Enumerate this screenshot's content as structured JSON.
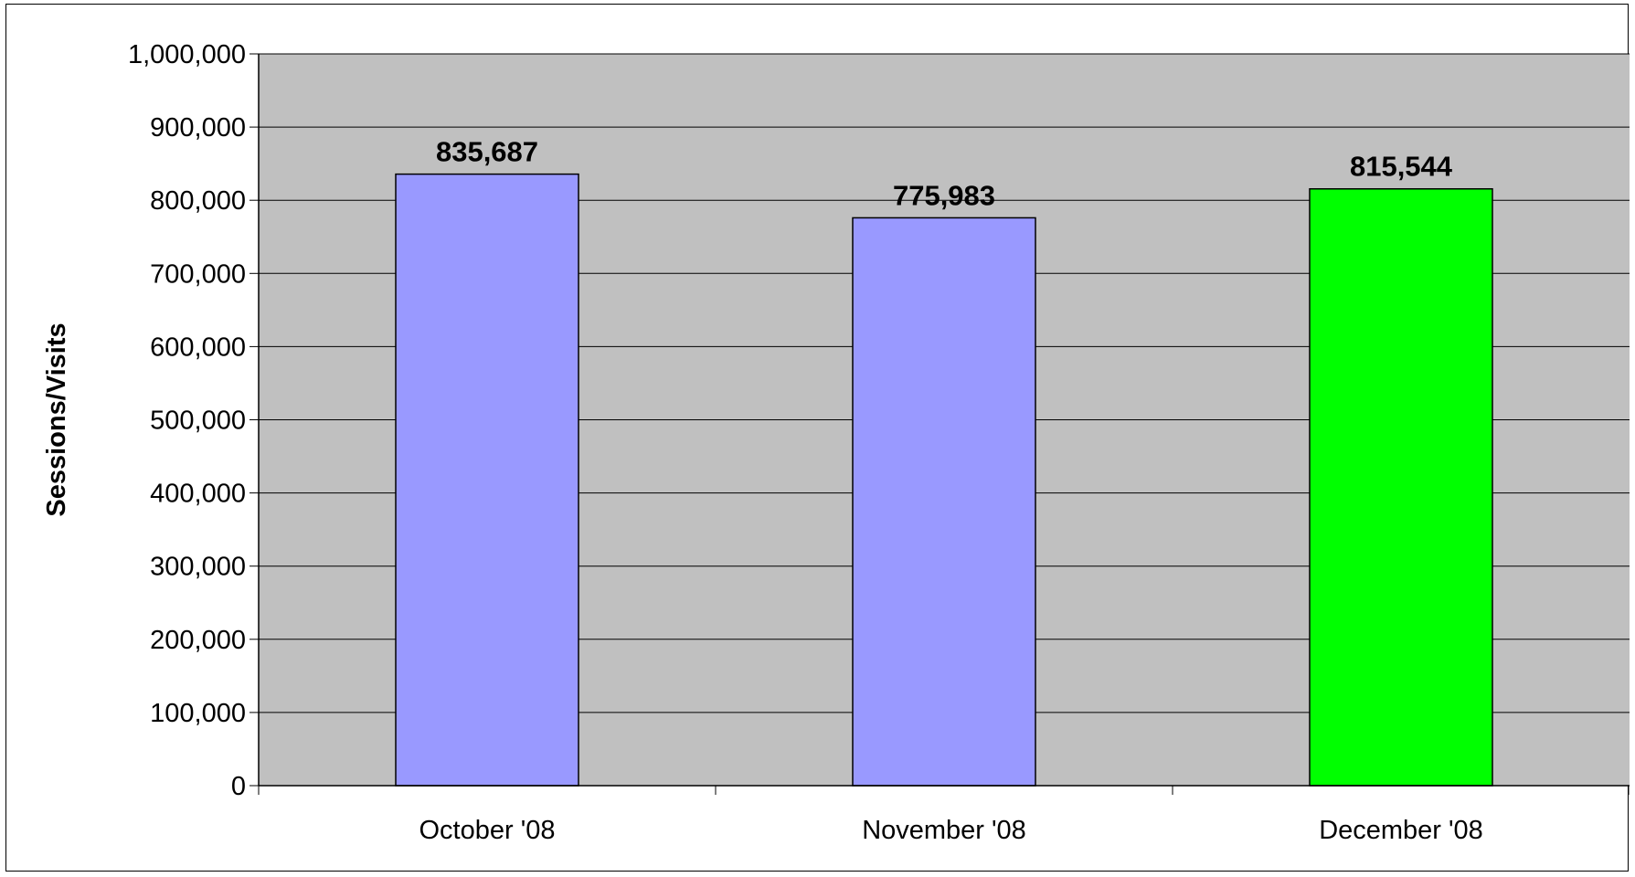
{
  "chart_data": {
    "type": "bar",
    "title": "",
    "xlabel": "",
    "ylabel": "Sessions/Visits",
    "categories": [
      "October '08",
      "November '08",
      "December '08"
    ],
    "values": [
      835687,
      775983,
      815544
    ],
    "data_labels": [
      "835,687",
      "775,983",
      "815,544"
    ],
    "bar_colors": [
      "#9999ff",
      "#9999ff",
      "#00ff00"
    ],
    "ylim": [
      0,
      1000000
    ],
    "yticks": [
      0,
      100000,
      200000,
      300000,
      400000,
      500000,
      600000,
      700000,
      800000,
      900000,
      1000000
    ],
    "ytick_labels": [
      "0",
      "100,000",
      "200,000",
      "300,000",
      "400,000",
      "500,000",
      "600,000",
      "700,000",
      "800,000",
      "900,000",
      "1,000,000"
    ],
    "grid": true,
    "legend": "none",
    "plot_background": "#c0c0c0"
  }
}
